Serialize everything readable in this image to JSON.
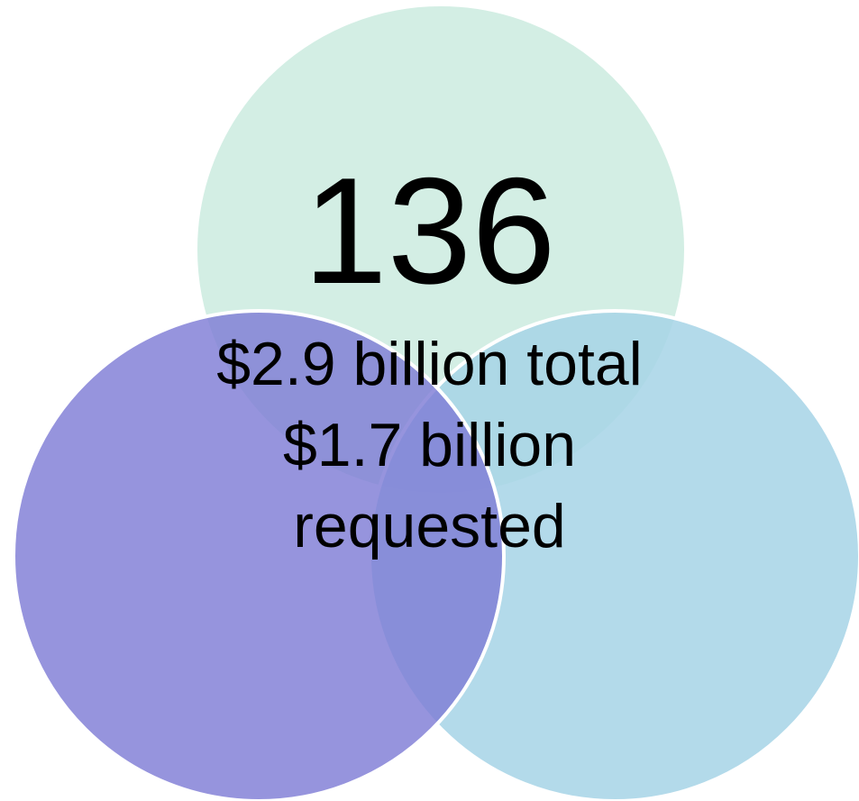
{
  "diagram": {
    "type": "venn",
    "circles": [
      {
        "role": "top",
        "color": "#d3eee4"
      },
      {
        "role": "bottom-left",
        "color": "#7f7dd5"
      },
      {
        "role": "bottom-right",
        "color": "#a6d4e6"
      }
    ],
    "center_value": "136",
    "lines": [
      "$2.9 billion total",
      "$1.7 billion",
      "requested"
    ]
  }
}
